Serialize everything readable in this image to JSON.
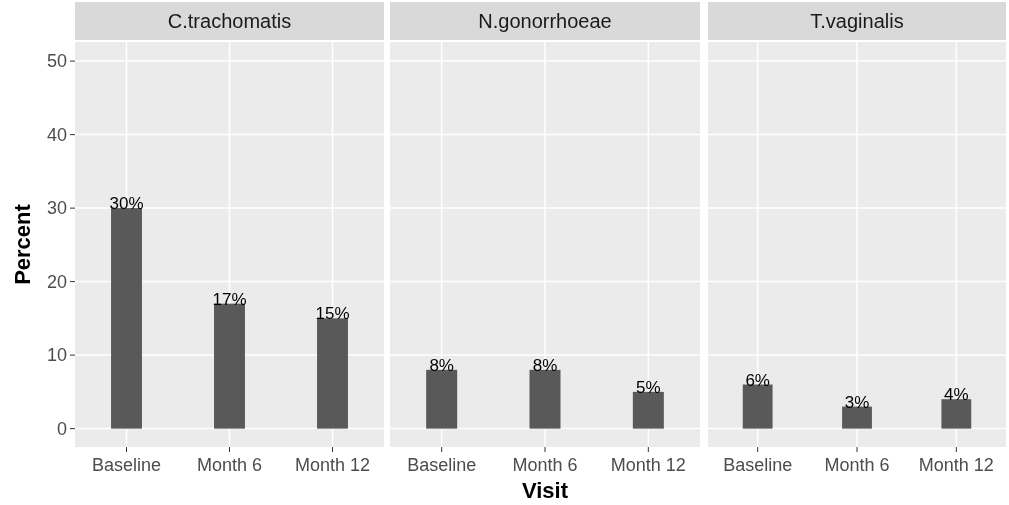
{
  "chart_data": [
    {
      "type": "bar",
      "title": "C.trachomatis",
      "ylabel": "Percent",
      "categories": [
        "Baseline",
        "Month 6",
        "Month 12"
      ],
      "values": [
        30,
        17,
        15
      ],
      "value_labels": [
        "30%",
        "17%",
        "15%"
      ],
      "color": "#595959",
      "ylim": [
        -2.5,
        52.6
      ],
      "yticks": [
        0,
        10,
        20,
        30,
        40,
        50
      ],
      "grid": true
    },
    {
      "type": "bar",
      "title": "N.gonorrhoeae",
      "xlabel": "Visit",
      "categories": [
        "Baseline",
        "Month 6",
        "Month 12"
      ],
      "values": [
        8,
        8,
        5
      ],
      "value_labels": [
        "8%",
        "8%",
        "5%"
      ],
      "color": "#595959",
      "ylim": [
        -2.5,
        52.6
      ],
      "yticks": [
        0,
        10,
        20,
        30,
        40,
        50
      ],
      "grid": true,
      "tick_labels": "x"
    },
    {
      "type": "bar",
      "title": "T.vaginalis",
      "categories": [
        "Baseline",
        "Month 6",
        "Month 12"
      ],
      "values": [
        6,
        3,
        4
      ],
      "value_labels": [
        "6%",
        "3%",
        "4%"
      ],
      "color": "#595959",
      "ylim": [
        -2.5,
        52.6
      ],
      "yticks": [
        0,
        10,
        20,
        30,
        40,
        50
      ],
      "grid": true,
      "tick_labels": "x"
    }
  ]
}
